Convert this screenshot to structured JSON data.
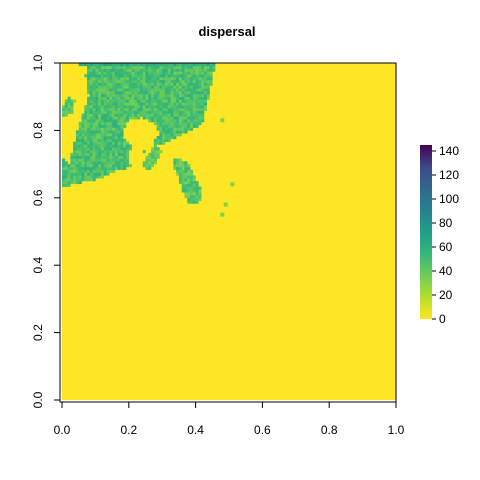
{
  "chart_data": {
    "type": "heatmap",
    "title": "dispersal",
    "xlabel": "",
    "ylabel": "",
    "xlim": [
      0,
      1
    ],
    "ylim": [
      0,
      1
    ],
    "x_ticks": [
      "0.0",
      "0.2",
      "0.4",
      "0.6",
      "0.8",
      "1.0"
    ],
    "y_ticks": [
      "0.0",
      "0.2",
      "0.4",
      "0.6",
      "0.8",
      "1.0"
    ],
    "legend": {
      "position": "right",
      "colormap": "viridis",
      "range": [
        0,
        145
      ],
      "ticks": [
        "0",
        "20",
        "40",
        "60",
        "80",
        "100",
        "120",
        "140"
      ]
    },
    "background_value": 0,
    "regions": [
      {
        "shape": "polygon",
        "value_range": [
          35,
          60
        ],
        "points": [
          [
            0.02,
            0.7
          ],
          [
            0.04,
            0.78
          ],
          [
            0.06,
            0.84
          ],
          [
            0.08,
            0.9
          ],
          [
            0.07,
            0.96
          ],
          [
            0.08,
            1.0
          ],
          [
            0.46,
            1.0
          ],
          [
            0.45,
            0.96
          ],
          [
            0.44,
            0.9
          ],
          [
            0.43,
            0.86
          ],
          [
            0.42,
            0.82
          ],
          [
            0.38,
            0.8
          ],
          [
            0.34,
            0.78
          ],
          [
            0.3,
            0.76
          ],
          [
            0.26,
            0.76
          ],
          [
            0.24,
            0.72
          ],
          [
            0.22,
            0.7
          ],
          [
            0.2,
            0.69
          ],
          [
            0.16,
            0.68
          ],
          [
            0.12,
            0.66
          ],
          [
            0.08,
            0.65
          ],
          [
            0.03,
            0.64
          ],
          [
            0.0,
            0.63
          ],
          [
            0.0,
            0.72
          ]
        ]
      },
      {
        "shape": "polygon",
        "value_range": [
          50,
          70
        ],
        "points": [
          [
            0.05,
            1.0
          ],
          [
            0.46,
            1.0
          ],
          [
            0.45,
            0.99
          ],
          [
            0.06,
            0.99
          ]
        ]
      },
      {
        "shape": "polygon",
        "value_range": [
          30,
          55
        ],
        "points": [
          [
            0.0,
            0.87
          ],
          [
            0.02,
            0.9
          ],
          [
            0.04,
            0.89
          ],
          [
            0.03,
            0.85
          ],
          [
            0.0,
            0.84
          ]
        ]
      },
      {
        "shape": "polygon",
        "value_range": [
          30,
          55
        ],
        "points": [
          [
            0.34,
            0.72
          ],
          [
            0.38,
            0.7
          ],
          [
            0.4,
            0.66
          ],
          [
            0.42,
            0.62
          ],
          [
            0.41,
            0.58
          ],
          [
            0.38,
            0.58
          ],
          [
            0.36,
            0.62
          ],
          [
            0.35,
            0.66
          ],
          [
            0.33,
            0.7
          ]
        ]
      },
      {
        "shape": "polygon",
        "value_range": [
          30,
          50
        ],
        "points": [
          [
            0.24,
            0.7
          ],
          [
            0.28,
            0.76
          ],
          [
            0.3,
            0.74
          ],
          [
            0.28,
            0.7
          ],
          [
            0.26,
            0.68
          ]
        ]
      },
      {
        "shape": "point",
        "value_range": [
          25,
          40
        ],
        "at": [
          0.51,
          0.64
        ]
      },
      {
        "shape": "point",
        "value_range": [
          25,
          40
        ],
        "at": [
          0.49,
          0.58
        ]
      },
      {
        "shape": "point",
        "value_range": [
          25,
          40
        ],
        "at": [
          0.48,
          0.55
        ]
      },
      {
        "shape": "point",
        "value_range": [
          25,
          40
        ],
        "at": [
          0.48,
          0.83
        ]
      }
    ],
    "holes": [
      {
        "points": [
          [
            0.18,
            0.8
          ],
          [
            0.2,
            0.83
          ],
          [
            0.24,
            0.84
          ],
          [
            0.28,
            0.82
          ],
          [
            0.29,
            0.79
          ],
          [
            0.27,
            0.76
          ],
          [
            0.24,
            0.74
          ],
          [
            0.21,
            0.75
          ],
          [
            0.19,
            0.77
          ]
        ]
      },
      {
        "points": [
          [
            0.0,
            0.72
          ],
          [
            0.03,
            0.78
          ],
          [
            0.05,
            0.83
          ],
          [
            0.0,
            0.84
          ]
        ]
      },
      {
        "points": [
          [
            0.0,
            0.9
          ],
          [
            0.05,
            0.92
          ],
          [
            0.07,
            0.96
          ],
          [
            0.05,
            1.0
          ],
          [
            0.0,
            1.0
          ]
        ]
      },
      {
        "points": [
          [
            0.24,
            0.76
          ],
          [
            0.24,
            0.7
          ],
          [
            0.22,
            0.69
          ],
          [
            0.2,
            0.7
          ],
          [
            0.2,
            0.74
          ]
        ]
      }
    ]
  }
}
